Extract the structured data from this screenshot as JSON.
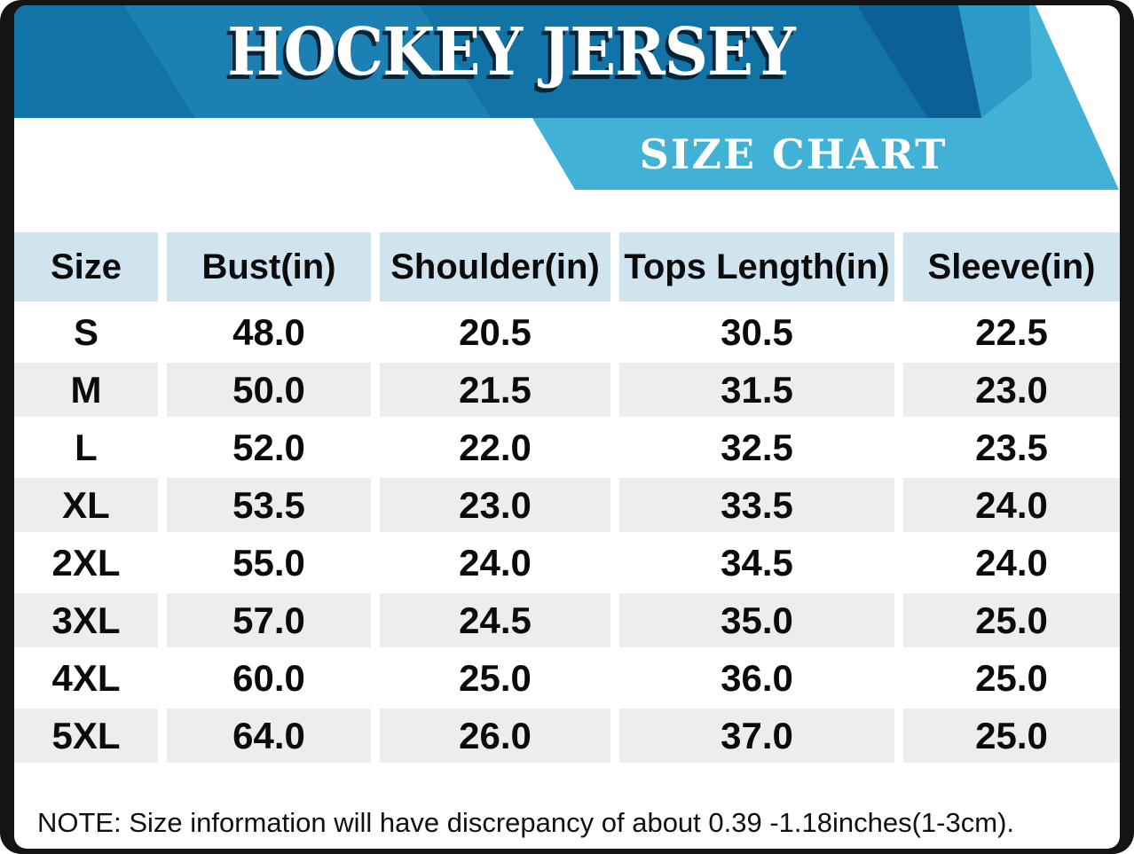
{
  "header": {
    "title": "HOCKEY JERSEY",
    "subtitle": "SIZE CHART"
  },
  "chart_data": {
    "type": "table",
    "title": "HOCKEY JERSEY SIZE CHART",
    "columns": [
      "Size",
      "Bust(in)",
      "Shoulder(in)",
      "Tops Length(in)",
      "Sleeve(in)"
    ],
    "rows": [
      [
        "S",
        "48.0",
        "20.5",
        "30.5",
        "22.5"
      ],
      [
        "M",
        "50.0",
        "21.5",
        "31.5",
        "23.0"
      ],
      [
        "L",
        "52.0",
        "22.0",
        "32.5",
        "23.5"
      ],
      [
        "XL",
        "53.5",
        "23.0",
        "33.5",
        "24.0"
      ],
      [
        "2XL",
        "55.0",
        "24.0",
        "34.5",
        "24.0"
      ],
      [
        "3XL",
        "57.0",
        "24.5",
        "35.0",
        "25.0"
      ],
      [
        "4XL",
        "60.0",
        "25.0",
        "36.0",
        "25.0"
      ],
      [
        "5XL",
        "64.0",
        "26.0",
        "37.0",
        "25.0"
      ]
    ]
  },
  "note": "NOTE: Size information will have discrepancy of about 0.39 -1.18inches(1-3cm).",
  "colors": {
    "frame-black": "#141414",
    "banner-blue": "#1173a6",
    "banner-light-stripe": "#1d80b2",
    "banner-dark-stripe": "#0d6095",
    "mid-blue": "#2c9ac6",
    "light-blue": "#41b1d6",
    "header-cell-blue": "#cfe4ef",
    "row-gray": "#ededf0",
    "text-black": "#0b0b0b"
  }
}
